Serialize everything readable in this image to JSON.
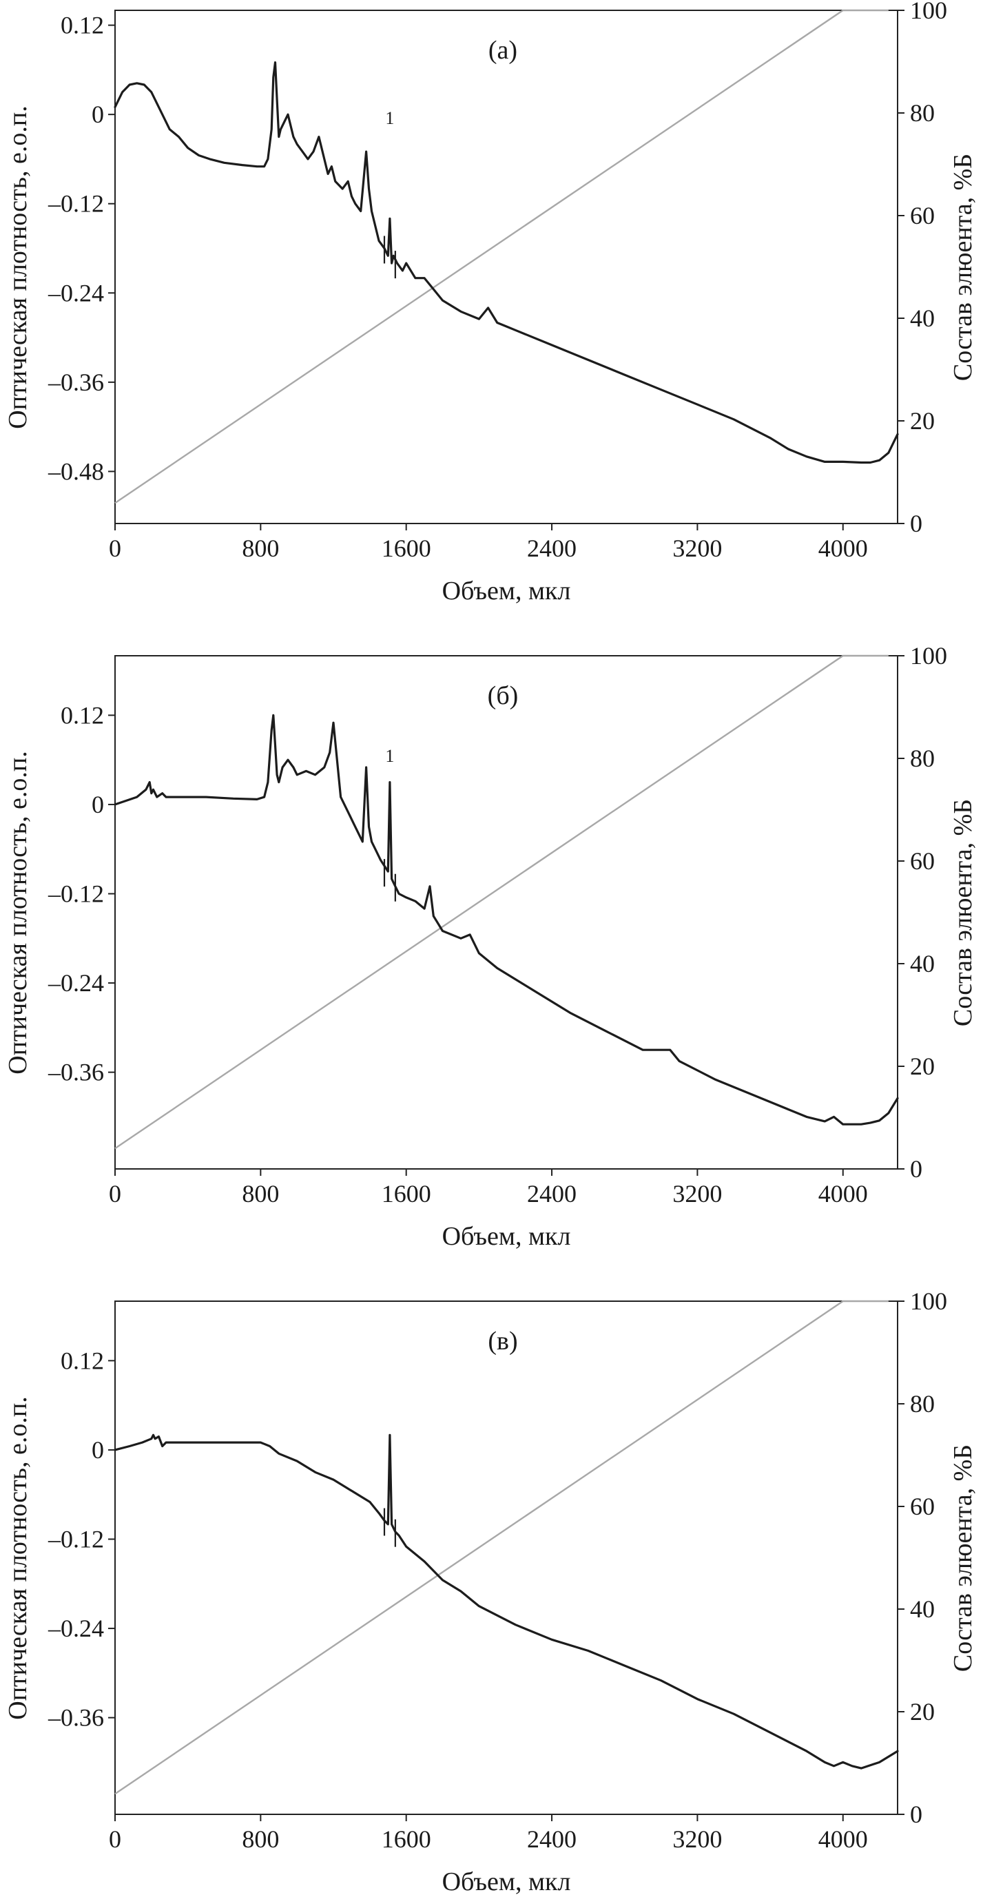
{
  "chart_data": [
    {
      "type": "line",
      "panel_label": "(а)",
      "xlabel": "Объем, мкл",
      "ylabel_left": "Оптическая плотность, е.о.п.",
      "ylabel_right": "Состав элюента, %Б",
      "xlim": [
        0,
        4300
      ],
      "ylim_left": [
        -0.55,
        0.14
      ],
      "ylim_right": [
        0,
        100
      ],
      "x_ticks": [
        0,
        800,
        1600,
        2400,
        3200,
        4000
      ],
      "x_tick_labels": [
        "0",
        "800",
        "1600",
        "2400",
        "3200",
        "4000"
      ],
      "y_left_ticks": [
        0.12,
        0,
        -0.12,
        -0.24,
        -0.36,
        -0.48
      ],
      "y_left_tick_labels": [
        "0.12",
        "0",
        "–0.12",
        "–0.24",
        "–0.36",
        "–0.48"
      ],
      "y_right_ticks": [
        100,
        80,
        60,
        40,
        20,
        0
      ],
      "y_right_tick_labels": [
        "100",
        "80",
        "60",
        "40",
        "20",
        "0"
      ],
      "peak_annotation": {
        "text": "1",
        "x": 1510,
        "y": -0.02
      },
      "series": [
        {
          "name": "optical density",
          "axis": "left",
          "color": "#1c1c1c",
          "x": [
            0,
            40,
            80,
            120,
            160,
            200,
            260,
            300,
            350,
            400,
            460,
            520,
            600,
            700,
            780,
            820,
            840,
            860,
            870,
            880,
            890,
            900,
            910,
            930,
            950,
            980,
            1000,
            1030,
            1060,
            1090,
            1120,
            1150,
            1170,
            1190,
            1210,
            1250,
            1280,
            1300,
            1320,
            1350,
            1380,
            1395,
            1410,
            1430,
            1450,
            1480,
            1500,
            1510,
            1520,
            1530,
            1550,
            1580,
            1600,
            1650,
            1700,
            1750,
            1800,
            1900,
            2000,
            2050,
            2100,
            2150,
            2200,
            2400,
            2600,
            2800,
            3000,
            3200,
            3400,
            3600,
            3700,
            3800,
            3900,
            4000,
            4100,
            4150,
            4200,
            4250,
            4280,
            4300
          ],
          "y": [
            0.01,
            0.03,
            0.04,
            0.042,
            0.04,
            0.03,
            0.0,
            -0.02,
            -0.03,
            -0.045,
            -0.055,
            -0.06,
            -0.065,
            -0.068,
            -0.07,
            -0.07,
            -0.06,
            -0.02,
            0.05,
            0.07,
            0.02,
            -0.03,
            -0.02,
            -0.01,
            0.0,
            -0.03,
            -0.04,
            -0.05,
            -0.06,
            -0.05,
            -0.03,
            -0.06,
            -0.08,
            -0.07,
            -0.09,
            -0.1,
            -0.09,
            -0.11,
            -0.12,
            -0.13,
            -0.05,
            -0.1,
            -0.13,
            -0.15,
            -0.17,
            -0.18,
            -0.19,
            -0.14,
            -0.2,
            -0.19,
            -0.2,
            -0.21,
            -0.2,
            -0.22,
            -0.22,
            -0.235,
            -0.25,
            -0.265,
            -0.275,
            -0.26,
            -0.28,
            -0.285,
            -0.29,
            -0.31,
            -0.33,
            -0.35,
            -0.37,
            -0.39,
            -0.41,
            -0.435,
            -0.45,
            -0.46,
            -0.467,
            -0.467,
            -0.468,
            -0.468,
            -0.465,
            -0.455,
            -0.44,
            -0.43
          ]
        },
        {
          "name": "eluent composition",
          "axis": "right",
          "color": "#a8a8a8",
          "x": [
            0,
            4000,
            4250
          ],
          "y": [
            4,
            100,
            100
          ]
        }
      ]
    },
    {
      "type": "line",
      "panel_label": "(б)",
      "xlabel": "Объем, мкл",
      "ylabel_left": "Оптическая плотность, е.о.п.",
      "ylabel_right": "Состав элюента, %Б",
      "xlim": [
        0,
        4300
      ],
      "ylim_left": [
        -0.49,
        0.2
      ],
      "ylim_right": [
        0,
        100
      ],
      "x_ticks": [
        0,
        800,
        1600,
        2400,
        3200,
        4000
      ],
      "x_tick_labels": [
        "0",
        "800",
        "1600",
        "2400",
        "3200",
        "4000"
      ],
      "y_left_ticks": [
        0.12,
        0,
        -0.12,
        -0.24,
        -0.36
      ],
      "y_left_tick_labels": [
        "0.12",
        "0",
        "–0.12",
        "–0.24",
        "–0.36"
      ],
      "y_right_ticks": [
        100,
        80,
        60,
        40,
        20,
        0
      ],
      "y_right_tick_labels": [
        "100",
        "80",
        "60",
        "40",
        "20",
        "0"
      ],
      "peak_annotation": {
        "text": "1",
        "x": 1510,
        "y": 0.05
      },
      "series": [
        {
          "name": "optical density",
          "axis": "left",
          "color": "#1c1c1c",
          "x": [
            0,
            60,
            120,
            170,
            190,
            200,
            210,
            230,
            260,
            280,
            300,
            350,
            500,
            650,
            780,
            820,
            840,
            860,
            870,
            880,
            890,
            900,
            920,
            950,
            980,
            1000,
            1050,
            1100,
            1150,
            1180,
            1200,
            1220,
            1240,
            1280,
            1320,
            1360,
            1380,
            1395,
            1410,
            1430,
            1460,
            1500,
            1510,
            1520,
            1540,
            1560,
            1600,
            1650,
            1700,
            1730,
            1750,
            1800,
            1900,
            1950,
            1980,
            2000,
            2100,
            2300,
            2500,
            2700,
            2900,
            3050,
            3100,
            3300,
            3500,
            3700,
            3800,
            3900,
            3950,
            4000,
            4100,
            4150,
            4200,
            4250,
            4300
          ],
          "y": [
            0.0,
            0.005,
            0.01,
            0.02,
            0.03,
            0.015,
            0.02,
            0.01,
            0.015,
            0.01,
            0.01,
            0.01,
            0.01,
            0.008,
            0.007,
            0.01,
            0.03,
            0.1,
            0.12,
            0.08,
            0.04,
            0.03,
            0.05,
            0.06,
            0.05,
            0.04,
            0.045,
            0.04,
            0.05,
            0.07,
            0.11,
            0.06,
            0.01,
            -0.01,
            -0.03,
            -0.05,
            0.05,
            -0.03,
            -0.05,
            -0.06,
            -0.075,
            -0.09,
            0.03,
            -0.1,
            -0.11,
            -0.12,
            -0.125,
            -0.13,
            -0.14,
            -0.11,
            -0.15,
            -0.17,
            -0.18,
            -0.175,
            -0.19,
            -0.2,
            -0.22,
            -0.25,
            -0.28,
            -0.305,
            -0.33,
            -0.33,
            -0.345,
            -0.37,
            -0.39,
            -0.41,
            -0.42,
            -0.426,
            -0.42,
            -0.43,
            -0.43,
            -0.428,
            -0.425,
            -0.415,
            -0.395
          ]
        },
        {
          "name": "eluent composition",
          "axis": "right",
          "color": "#a8a8a8",
          "x": [
            0,
            4000,
            4250
          ],
          "y": [
            4,
            100,
            100
          ]
        }
      ]
    },
    {
      "type": "line",
      "panel_label": "(в)",
      "xlabel": "Объем, мкл",
      "ylabel_left": "Оптическая плотность, е.о.п.",
      "ylabel_right": "Состав элюента, %Б",
      "xlim": [
        0,
        4300
      ],
      "ylim_left": [
        -0.49,
        0.2
      ],
      "ylim_right": [
        0,
        100
      ],
      "x_ticks": [
        0,
        800,
        1600,
        2400,
        3200,
        4000
      ],
      "x_tick_labels": [
        "0",
        "800",
        "1600",
        "2400",
        "3200",
        "4000"
      ],
      "y_left_ticks": [
        0.12,
        0,
        -0.12,
        -0.24,
        -0.36
      ],
      "y_left_tick_labels": [
        "0.12",
        "0",
        "–0.12",
        "–0.24",
        "–0.36"
      ],
      "y_right_ticks": [
        100,
        80,
        60,
        40,
        20,
        0
      ],
      "y_right_tick_labels": [
        "100",
        "80",
        "60",
        "40",
        "20",
        "0"
      ],
      "peak_annotation": null,
      "series": [
        {
          "name": "optical density",
          "axis": "left",
          "color": "#1c1c1c",
          "x": [
            0,
            80,
            150,
            200,
            210,
            220,
            240,
            260,
            280,
            300,
            400,
            600,
            800,
            850,
            900,
            1000,
            1100,
            1200,
            1300,
            1400,
            1450,
            1480,
            1500,
            1510,
            1520,
            1540,
            1560,
            1600,
            1700,
            1800,
            1900,
            2000,
            2200,
            2400,
            2600,
            2700,
            2800,
            3000,
            3200,
            3400,
            3600,
            3800,
            3900,
            3950,
            4000,
            4050,
            4100,
            4200,
            4300
          ],
          "y": [
            0.0,
            0.005,
            0.01,
            0.015,
            0.02,
            0.015,
            0.018,
            0.005,
            0.01,
            0.01,
            0.01,
            0.01,
            0.01,
            0.005,
            -0.005,
            -0.015,
            -0.03,
            -0.04,
            -0.055,
            -0.07,
            -0.085,
            -0.095,
            -0.1,
            0.02,
            -0.1,
            -0.11,
            -0.115,
            -0.13,
            -0.15,
            -0.175,
            -0.19,
            -0.21,
            -0.235,
            -0.255,
            -0.27,
            -0.28,
            -0.29,
            -0.31,
            -0.335,
            -0.355,
            -0.38,
            -0.405,
            -0.42,
            -0.425,
            -0.42,
            -0.425,
            -0.428,
            -0.42,
            -0.405
          ]
        },
        {
          "name": "eluent composition",
          "axis": "right",
          "color": "#a8a8a8",
          "x": [
            0,
            4000,
            4250
          ],
          "y": [
            4,
            100,
            100
          ]
        }
      ]
    }
  ]
}
